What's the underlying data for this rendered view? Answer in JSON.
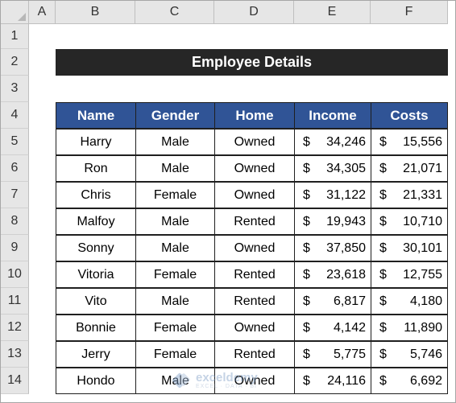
{
  "columns": [
    "A",
    "B",
    "C",
    "D",
    "E",
    "F"
  ],
  "rows": [
    "1",
    "2",
    "3",
    "4",
    "5",
    "6",
    "7",
    "8",
    "9",
    "10",
    "11",
    "12",
    "13",
    "14"
  ],
  "title": "Employee Details",
  "headers": [
    "Name",
    "Gender",
    "Home",
    "Income",
    "Costs"
  ],
  "currency_symbol": "$",
  "employees": [
    {
      "name": "Harry",
      "gender": "Male",
      "home": "Owned",
      "income": "34,246",
      "costs": "15,556"
    },
    {
      "name": "Ron",
      "gender": "Male",
      "home": "Owned",
      "income": "34,305",
      "costs": "21,071"
    },
    {
      "name": "Chris",
      "gender": "Female",
      "home": "Owned",
      "income": "31,122",
      "costs": "21,331"
    },
    {
      "name": "Malfoy",
      "gender": "Male",
      "home": "Rented",
      "income": "19,943",
      "costs": "10,710"
    },
    {
      "name": "Sonny",
      "gender": "Male",
      "home": "Owned",
      "income": "37,850",
      "costs": "30,101"
    },
    {
      "name": "Vitoria",
      "gender": "Female",
      "home": "Rented",
      "income": "23,618",
      "costs": "12,755"
    },
    {
      "name": "Vito",
      "gender": "Male",
      "home": "Rented",
      "income": "6,817",
      "costs": "4,180"
    },
    {
      "name": "Bonnie",
      "gender": "Female",
      "home": "Owned",
      "income": "4,142",
      "costs": "11,890"
    },
    {
      "name": "Jerry",
      "gender": "Female",
      "home": "Rented",
      "income": "5,775",
      "costs": "5,746"
    },
    {
      "name": "Hondo",
      "gender": "Male",
      "home": "Owned",
      "income": "24,116",
      "costs": "6,692"
    }
  ],
  "watermark": {
    "brand": "exceldemy",
    "tagline": "EXCEL · DATA · BI"
  },
  "colors": {
    "title_bg": "#262626",
    "header_bg": "#305496",
    "grid_header_bg": "#e6e6e6"
  }
}
